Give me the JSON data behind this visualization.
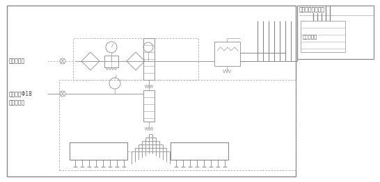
{
  "fig_width": 5.46,
  "fig_height": 2.62,
  "dpi": 100,
  "bg_color": "#ffffff",
  "lc": "#999999",
  "lc2": "#777777",
  "tc": "#444444",
  "fs": 5.5,
  "labels": {
    "top_right_title": "接至油氣站電控箱",
    "terminal_box": "接線端子箱",
    "compressed_air": "接壓縮空氣",
    "oil_pressure": "接壓力油Φ18",
    "oil_station": "來自油氣站"
  }
}
